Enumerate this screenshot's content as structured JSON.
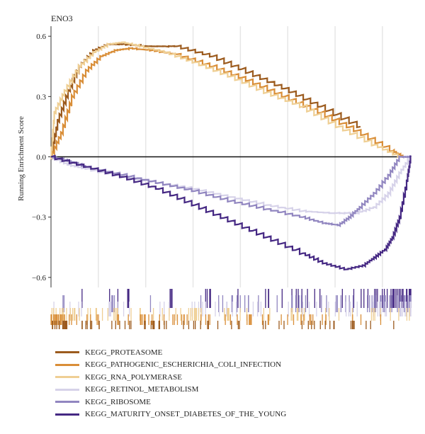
{
  "chart_data": {
    "type": "line",
    "title": "ENO3",
    "ylabel": "Running Enrichment Score",
    "xlabel": "",
    "ylim": [
      -0.65,
      0.65
    ],
    "yticks": [
      {
        "value": 0.6,
        "label": "0.6"
      },
      {
        "value": 0.3,
        "label": "0.3"
      },
      {
        "value": 0.0,
        "label": "0.0"
      },
      {
        "value": -0.3,
        "label": "−0.3"
      },
      {
        "value": -0.6,
        "label": "−0.6"
      }
    ],
    "x_range": [
      0,
      1
    ],
    "grid": "vertical",
    "legend_position": "bottom",
    "series": [
      {
        "name": "KEGG_PROTEASOME",
        "color": "#9c5b1e",
        "x": [
          0,
          0.02,
          0.05,
          0.08,
          0.12,
          0.16,
          0.2,
          0.27,
          0.35,
          0.45,
          0.55,
          0.65,
          0.75,
          0.86
        ],
        "y": [
          0,
          0.18,
          0.33,
          0.45,
          0.53,
          0.56,
          0.56,
          0.55,
          0.55,
          0.5,
          0.42,
          0.34,
          0.25,
          0.15
        ]
      },
      {
        "name": "KEGG_PATHOGENIC_ESCHERICHIA_COLI_INFECTION",
        "color": "#d98e38",
        "x": [
          0,
          0.03,
          0.06,
          0.1,
          0.14,
          0.18,
          0.22,
          0.28,
          0.35,
          0.45,
          0.55,
          0.65,
          0.75,
          0.85,
          0.95,
          0.98
        ],
        "y": [
          0,
          0.12,
          0.3,
          0.43,
          0.5,
          0.53,
          0.54,
          0.53,
          0.51,
          0.45,
          0.38,
          0.3,
          0.22,
          0.13,
          0.03,
          0.0
        ]
      },
      {
        "name": "KEGG_RNA_POLYMERASE",
        "color": "#efcf94",
        "x": [
          0,
          0.01,
          0.04,
          0.08,
          0.12,
          0.16,
          0.2,
          0.25,
          0.32,
          0.4,
          0.5,
          0.6,
          0.7,
          0.8,
          0.9,
          0.97
        ],
        "y": [
          0,
          0.22,
          0.33,
          0.45,
          0.52,
          0.56,
          0.57,
          0.55,
          0.52,
          0.47,
          0.4,
          0.32,
          0.25,
          0.15,
          0.06,
          0.0
        ]
      },
      {
        "name": "KEGG_RETINOL_METABOLISM",
        "color": "#d6d2e9",
        "x": [
          0,
          0.05,
          0.1,
          0.2,
          0.3,
          0.4,
          0.5,
          0.6,
          0.7,
          0.78,
          0.85,
          0.9,
          0.94,
          0.97,
          1.0
        ],
        "y": [
          0,
          -0.04,
          -0.06,
          -0.1,
          -0.13,
          -0.16,
          -0.2,
          -0.24,
          -0.27,
          -0.28,
          -0.28,
          -0.25,
          -0.18,
          -0.08,
          0.0
        ]
      },
      {
        "name": "KEGG_RIBOSOME",
        "color": "#9186c0",
        "x": [
          0,
          0.05,
          0.1,
          0.2,
          0.3,
          0.4,
          0.5,
          0.6,
          0.7,
          0.76,
          0.8,
          0.83,
          0.86,
          0.9,
          0.94,
          0.97,
          1.0
        ],
        "y": [
          0,
          -0.02,
          -0.05,
          -0.09,
          -0.13,
          -0.17,
          -0.22,
          -0.26,
          -0.3,
          -0.33,
          -0.34,
          -0.3,
          -0.25,
          -0.18,
          -0.09,
          0.0,
          0.0
        ]
      },
      {
        "name": "KEGG_MATURITY_ONSET_DIABETES_OF_THE_YOUNG",
        "color": "#452883",
        "x": [
          0,
          0.1,
          0.2,
          0.3,
          0.4,
          0.5,
          0.6,
          0.7,
          0.76,
          0.82,
          0.87,
          0.9,
          0.93,
          0.95,
          0.97,
          0.99,
          1.0
        ],
        "y": [
          0,
          -0.05,
          -0.1,
          -0.16,
          -0.24,
          -0.32,
          -0.4,
          -0.48,
          -0.53,
          -0.56,
          -0.54,
          -0.5,
          -0.46,
          -0.4,
          -0.3,
          -0.12,
          0.0
        ]
      }
    ]
  }
}
